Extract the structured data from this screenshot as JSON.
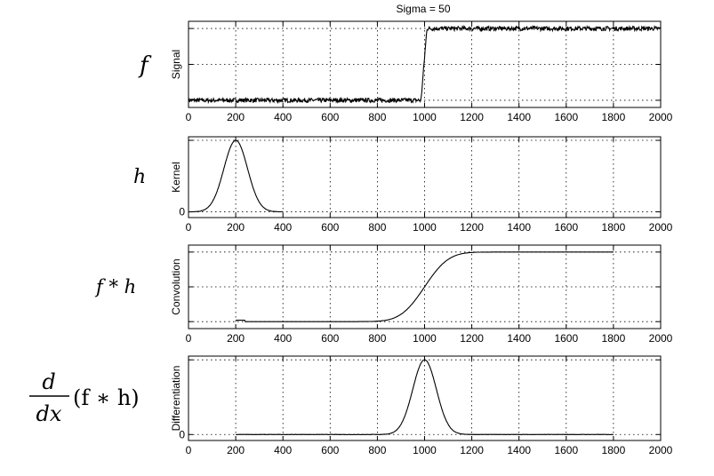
{
  "title": "Sigma = 50",
  "math_labels": {
    "f": "f",
    "h": "h",
    "fh": "f * h",
    "deriv": {
      "numerator": "d",
      "denominator": "dx",
      "expr": "(f ∗ h)"
    }
  },
  "chart_data": [
    {
      "type": "line",
      "name": "signal",
      "title": "Sigma = 50",
      "ylabel": "Signal",
      "xlim": [
        0,
        2000
      ],
      "ylim": [
        -0.1,
        1.1
      ],
      "xticks": [
        0,
        200,
        400,
        600,
        800,
        1000,
        1200,
        1400,
        1600,
        1800,
        2000
      ],
      "yticks": [
        0,
        0.5,
        1
      ],
      "ytick_labels": [
        "",
        "",
        ""
      ],
      "grid": true,
      "series": [
        {
          "name": "f",
          "x": [
            0,
            985,
            1010,
            2000
          ],
          "y": [
            0,
            0,
            1,
            1
          ],
          "noise": 0.03
        }
      ]
    },
    {
      "type": "line",
      "name": "kernel",
      "ylabel": "Kernel",
      "xlim": [
        0,
        2000
      ],
      "ylim": [
        -0.08,
        1.05
      ],
      "xticks": [
        0,
        200,
        400,
        600,
        800,
        1000,
        1200,
        1400,
        1600,
        1800,
        2000
      ],
      "yticks": [
        0,
        1
      ],
      "ytick_labels": [
        "0",
        ""
      ],
      "grid": true,
      "series": [
        {
          "name": "h",
          "gaussian": {
            "center": 200,
            "sigma": 50,
            "amplitude": 1
          },
          "x_range": [
            0,
            400
          ]
        }
      ]
    },
    {
      "type": "line",
      "name": "convolution",
      "ylabel": "Convolution",
      "xlim": [
        0,
        2000
      ],
      "ylim": [
        -0.1,
        1.1
      ],
      "xticks": [
        0,
        200,
        400,
        600,
        800,
        1000,
        1200,
        1400,
        1600,
        1800,
        2000
      ],
      "yticks": [
        0,
        0.5,
        1
      ],
      "ytick_labels": [
        "",
        "",
        ""
      ],
      "grid": true,
      "series": [
        {
          "name": "f*h",
          "cdf": {
            "center": 1000,
            "sigma": 50
          },
          "x_range": [
            200,
            1800
          ],
          "start_bump": 0.02
        }
      ]
    },
    {
      "type": "line",
      "name": "differentiation",
      "ylabel": "Differentiation",
      "xlim": [
        0,
        2000
      ],
      "ylim": [
        -0.08,
        1.05
      ],
      "xticks": [
        0,
        200,
        400,
        600,
        800,
        1000,
        1200,
        1400,
        1600,
        1800,
        2000
      ],
      "yticks": [
        0,
        1
      ],
      "ytick_labels": [
        "0",
        ""
      ],
      "grid": true,
      "series": [
        {
          "name": "d/dx(f*h)",
          "gaussian": {
            "center": 1000,
            "sigma": 50,
            "amplitude": 1
          },
          "x_range": [
            200,
            1800
          ]
        }
      ]
    }
  ]
}
